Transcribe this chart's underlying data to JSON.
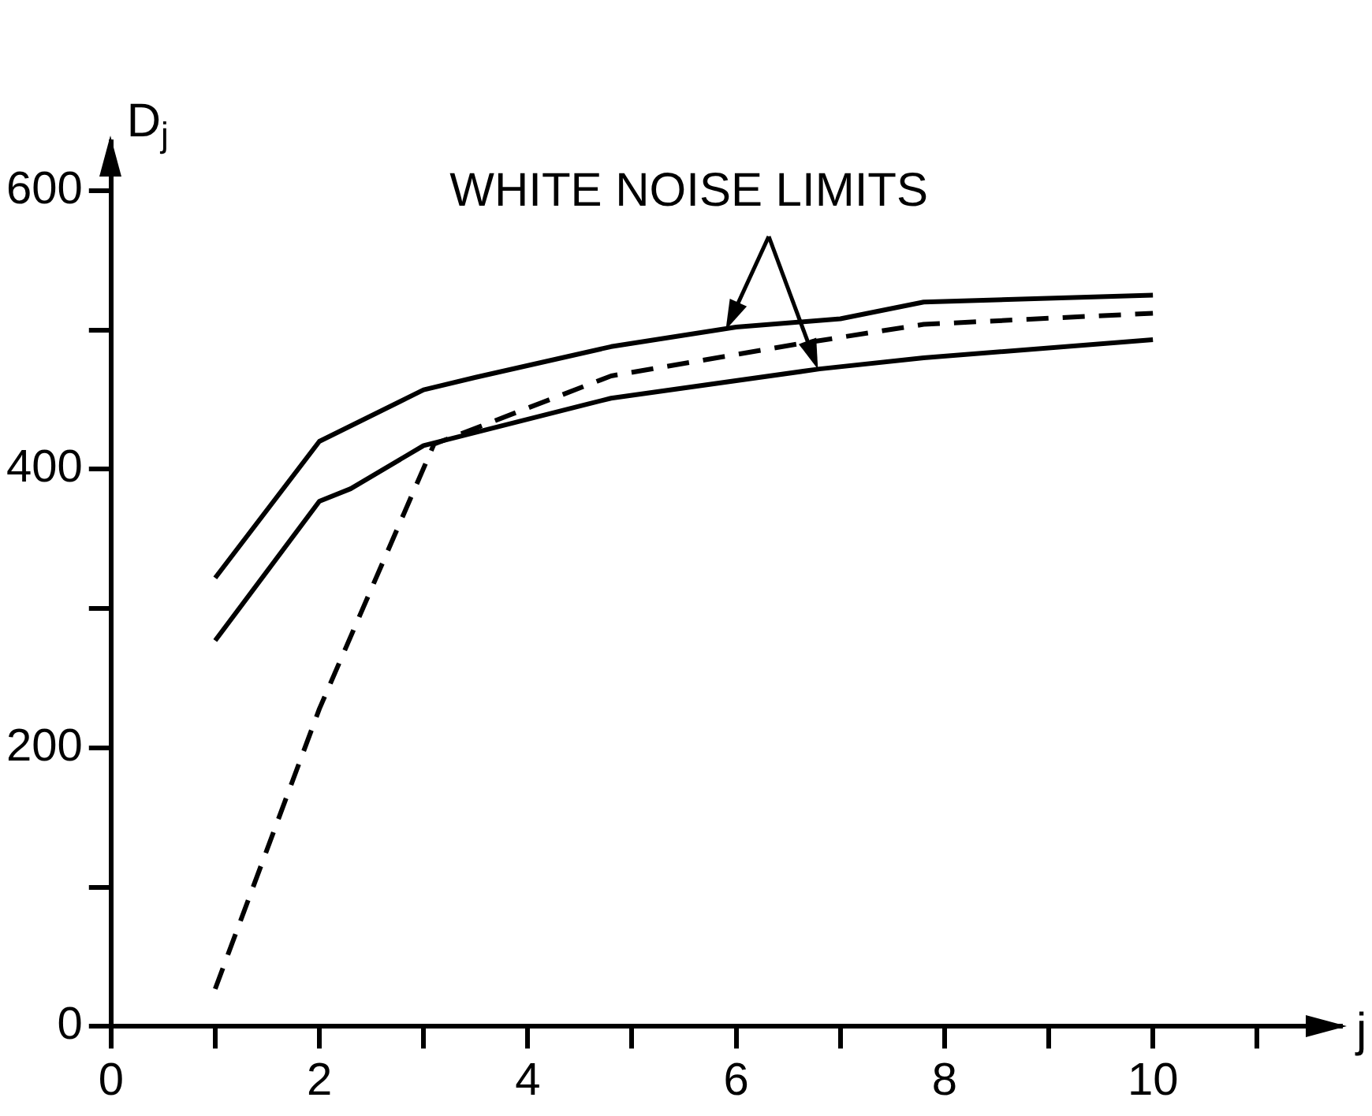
{
  "chart_data": {
    "type": "line",
    "xlabel": "j",
    "ylabel": "D$_{j}$",
    "annotations": [
      {
        "text": "WHITE NOISE LIMITS",
        "x": 5.9,
        "y": 500
      }
    ],
    "xlim": [
      0,
      11.8
    ],
    "xticks": [
      0,
      {
        "value": 1,
        "label": null
      },
      2,
      {
        "value": 3,
        "label": null
      },
      4,
      {
        "value": 5,
        "label": null
      },
      6,
      {
        "value": 7,
        "label": null
      },
      8,
      {
        "value": 9,
        "label": null
      },
      10,
      {
        "value": 11,
        "label": null
      }
    ],
    "ylim": [
      0,
      635
    ],
    "yticks": [
      0,
      {
        "value": 100,
        "label": null
      },
      200,
      {
        "value": 300,
        "label": null
      },
      400,
      {
        "value": 500,
        "label": null
      },
      600
    ],
    "grid": false,
    "legend": false,
    "marker": "none",
    "series": [
      {
        "color": "#000000",
        "line_style": "solid",
        "x": [
          1,
          2,
          3,
          3.5,
          4.8,
          6,
          7,
          7.8,
          10
        ],
        "values": [
          322,
          420,
          457,
          466,
          488,
          502,
          508,
          520,
          525
        ]
      },
      {
        "color": "#000000",
        "line_style": "solid",
        "x": [
          1,
          2,
          2.3,
          3,
          4.8,
          6.8,
          7.8,
          10
        ],
        "values": [
          277,
          377,
          386,
          417,
          451,
          472,
          480,
          493
        ]
      },
      {
        "color": "#000000",
        "line_style": "dashed",
        "x": [
          1,
          2,
          3.1,
          4.8,
          6.6,
          7.8,
          10
        ],
        "values": [
          27,
          228,
          418,
          467,
          490,
          504,
          512
        ]
      }
    ]
  }
}
